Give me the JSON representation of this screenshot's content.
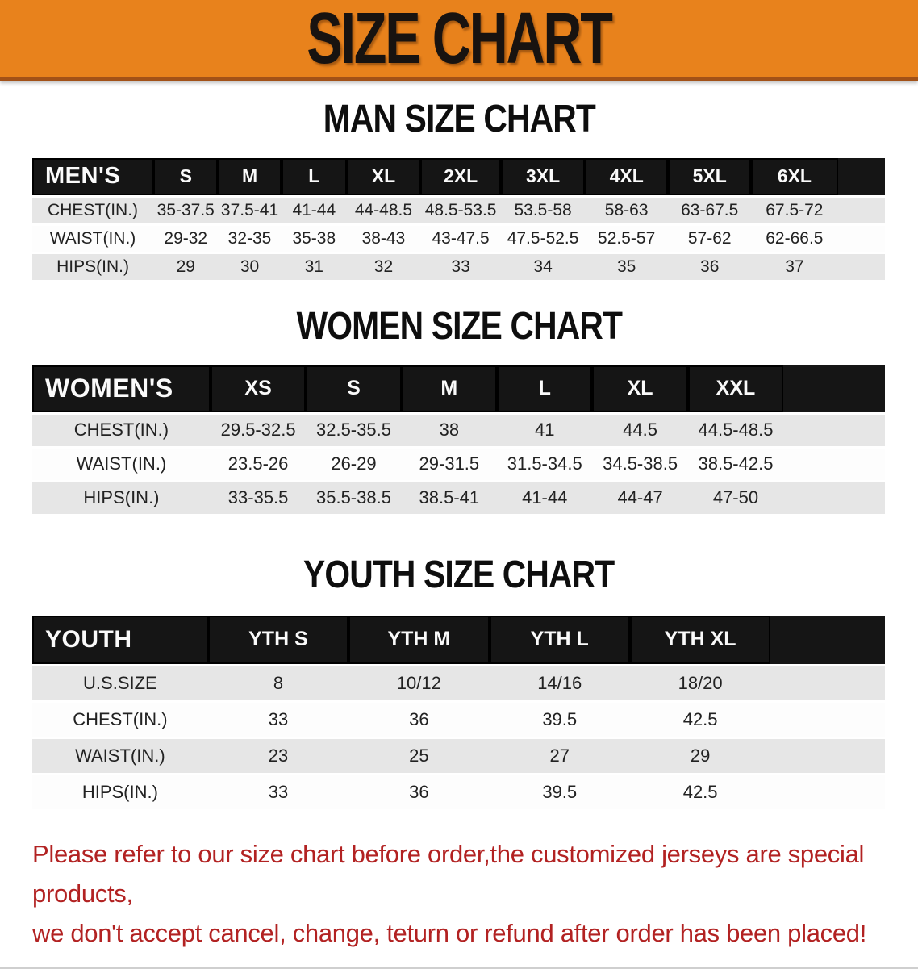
{
  "banner": {
    "title": "SIZE CHART"
  },
  "colors": {
    "banner_bg": "#E8821C",
    "banner_border": "#A25117",
    "table_header_bg": "#151515",
    "row_stripe": "#E6E6E6",
    "disclaimer_red": "#B22222"
  },
  "sections": [
    {
      "heading": "MAN SIZE CHART",
      "table": {
        "label": "MEN'S",
        "columns": [
          "S",
          "M",
          "L",
          "XL",
          "2XL",
          "3XL",
          "4XL",
          "5XL",
          "6XL"
        ],
        "rows": [
          {
            "label": "CHEST(IN.)",
            "values": [
              "35-37.5",
              "37.5-41",
              "41-44",
              "44-48.5",
              "48.5-53.5",
              "53.5-58",
              "58-63",
              "63-67.5",
              "67.5-72"
            ]
          },
          {
            "label": "WAIST(IN.)",
            "values": [
              "29-32",
              "32-35",
              "35-38",
              "38-43",
              "43-47.5",
              "47.5-52.5",
              "52.5-57",
              "57-62",
              "62-66.5"
            ]
          },
          {
            "label": "HIPS(IN.)",
            "values": [
              "29",
              "30",
              "31",
              "32",
              "33",
              "34",
              "35",
              "36",
              "37"
            ]
          }
        ]
      }
    },
    {
      "heading": "WOMEN SIZE CHART",
      "table": {
        "label": "WOMEN'S",
        "columns": [
          "XS",
          "S",
          "M",
          "L",
          "XL",
          "XXL"
        ],
        "rows": [
          {
            "label": "CHEST(IN.)",
            "values": [
              "29.5-32.5",
              "32.5-35.5",
              "38",
              "41",
              "44.5",
              "44.5-48.5"
            ]
          },
          {
            "label": "WAIST(IN.)",
            "values": [
              "23.5-26",
              "26-29",
              "29-31.5",
              "31.5-34.5",
              "34.5-38.5",
              "38.5-42.5"
            ]
          },
          {
            "label": "HIPS(IN.)",
            "values": [
              "33-35.5",
              "35.5-38.5",
              "38.5-41",
              "41-44",
              "44-47",
              "47-50"
            ]
          }
        ]
      }
    },
    {
      "heading": "YOUTH SIZE CHART",
      "table": {
        "label": "YOUTH",
        "columns": [
          "YTH S",
          "YTH M",
          "YTH L",
          "YTH XL"
        ],
        "rows": [
          {
            "label": "U.S.SIZE",
            "values": [
              "8",
              "10/12",
              "14/16",
              "18/20"
            ]
          },
          {
            "label": "CHEST(IN.)",
            "values": [
              "33",
              "36",
              "39.5",
              "42.5"
            ]
          },
          {
            "label": "WAIST(IN.)",
            "values": [
              "23",
              "25",
              "27",
              "29"
            ]
          },
          {
            "label": "HIPS(IN.)",
            "values": [
              "33",
              "36",
              "39.5",
              "42.5"
            ]
          }
        ]
      }
    }
  ],
  "disclaimer": {
    "line1": "Please refer to our size chart before order,the customized jerseys are special products,",
    "line2": "we don't accept cancel, change, teturn or refund after order has been placed!"
  }
}
